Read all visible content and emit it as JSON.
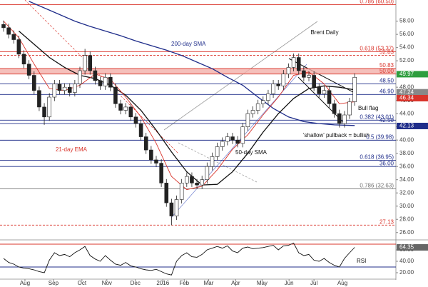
{
  "chart_data": {
    "type": "candlestick",
    "title": "Brent Daily",
    "ylim": [
      25,
      61.2
    ],
    "yticks": [
      {
        "value": 26,
        "label": "26.00"
      },
      {
        "value": 28,
        "label": "28.00"
      },
      {
        "value": 30,
        "label": "30.00"
      },
      {
        "value": 32,
        "label": "32.00"
      },
      {
        "value": 34,
        "label": "34.00"
      },
      {
        "value": 36,
        "label": "36.00"
      },
      {
        "value": 38,
        "label": "38.00"
      },
      {
        "value": 40,
        "label": "40.00"
      },
      {
        "value": 42,
        "label": "42.00"
      },
      {
        "value": 44,
        "label": "44.00"
      },
      {
        "value": 46,
        "label": "46.00"
      },
      {
        "value": 48,
        "label": "48.00"
      },
      {
        "value": 50,
        "label": "50.00"
      },
      {
        "value": 52,
        "label": "52.00"
      },
      {
        "value": 54,
        "label": "54.00"
      },
      {
        "value": 56,
        "label": "56.00"
      },
      {
        "value": 58,
        "label": "58.00"
      }
    ],
    "xlim": [
      -0.7,
      77.1
    ],
    "xticks": [
      {
        "value": 4.2,
        "label": "Aug"
      },
      {
        "value": 9.8,
        "label": "Sep"
      },
      {
        "value": 15.4,
        "label": "Oct"
      },
      {
        "value": 20.3,
        "label": "Nov"
      },
      {
        "value": 25.9,
        "label": "Dec"
      },
      {
        "value": 31.3,
        "label": "2016"
      },
      {
        "value": 35.5,
        "label": "Feb"
      },
      {
        "value": 40.3,
        "label": "Mar"
      },
      {
        "value": 45.6,
        "label": "Apr"
      },
      {
        "value": 50.8,
        "label": "May"
      },
      {
        "value": 56.1,
        "label": "Jun"
      },
      {
        "value": 61,
        "label": "Jul"
      },
      {
        "value": 66.6,
        "label": "Aug"
      }
    ],
    "grid": false,
    "candles": {
      "up_color": "#ffffff",
      "down_color": "#222222",
      "open": [
        57.5,
        57.0,
        56.0,
        55.2,
        53.0,
        51.5,
        49.8,
        47.5,
        45.0,
        43.5,
        46.5,
        48.5,
        47.5,
        48.0,
        47.2,
        48.5,
        50.5,
        52.8,
        50.5,
        49.0,
        48.2,
        49.5,
        48.0,
        45.5,
        44.5,
        45.0,
        43.5,
        42.5,
        40.5,
        38.5,
        37.0,
        36.5,
        33.5,
        30.5,
        28.5,
        31.0,
        33.5,
        34.5,
        33.5,
        33.2,
        34.0,
        36.0,
        37.5,
        39.0,
        39.8,
        40.5,
        40.0,
        39.5,
        42.0,
        44.0,
        44.5,
        45.5,
        46.0,
        47.0,
        48.5,
        48.2,
        50.0,
        51.0,
        52.5,
        50.5,
        49.5,
        49.8,
        48.0,
        47.0,
        47.5,
        45.5,
        44.0,
        42.5,
        43.8,
        45.8
      ],
      "high": [
        58.1,
        57.6,
        56.6,
        55.8,
        53.6,
        52.1,
        50.4,
        48.1,
        45.6,
        47.1,
        49.1,
        49.1,
        48.6,
        48.6,
        49.1,
        51.1,
        53.8,
        53.4,
        51.1,
        49.6,
        50.1,
        50.1,
        48.6,
        46.1,
        45.6,
        45.6,
        44.1,
        43.1,
        41.1,
        39.1,
        37.6,
        37.1,
        34.1,
        31.1,
        31.6,
        34.1,
        35.1,
        35.1,
        34.1,
        34.6,
        36.6,
        38.1,
        39.6,
        40.4,
        41.1,
        41.1,
        40.6,
        42.6,
        44.6,
        45.1,
        46.1,
        46.6,
        47.6,
        49.1,
        49.1,
        50.6,
        51.6,
        53.1,
        53.1,
        51.1,
        50.4,
        50.4,
        48.6,
        48.1,
        48.1,
        46.1,
        44.6,
        44.4,
        46.4,
        50.1
      ],
      "low": [
        56.4,
        55.4,
        54.6,
        52.4,
        50.9,
        49.2,
        46.9,
        44.4,
        42.3,
        42.9,
        45.9,
        46.9,
        46.9,
        46.6,
        46.6,
        47.9,
        49.9,
        49.9,
        48.4,
        47.6,
        47.6,
        47.4,
        44.9,
        43.9,
        43.9,
        42.9,
        41.9,
        39.9,
        37.9,
        36.4,
        35.9,
        32.9,
        29.9,
        27.13,
        27.9,
        30.4,
        32.9,
        32.9,
        32.6,
        32.6,
        33.4,
        35.4,
        36.9,
        38.4,
        39.2,
        39.4,
        38.9,
        38.9,
        41.4,
        43.4,
        43.9,
        44.9,
        45.4,
        46.4,
        47.6,
        47.6,
        49.4,
        50.4,
        49.9,
        48.9,
        48.9,
        47.4,
        46.4,
        46.4,
        44.9,
        43.4,
        41.9,
        41.9,
        43.2,
        45.2
      ],
      "close": [
        57.0,
        56.0,
        55.2,
        53.0,
        51.5,
        49.8,
        47.5,
        45.0,
        43.5,
        46.5,
        48.5,
        47.5,
        48.0,
        47.2,
        48.5,
        50.5,
        52.8,
        50.5,
        49.0,
        48.2,
        49.5,
        48.0,
        45.5,
        44.5,
        45.0,
        43.5,
        42.5,
        40.5,
        38.5,
        37.0,
        36.5,
        33.5,
        30.5,
        28.5,
        31.0,
        33.5,
        34.5,
        33.5,
        33.2,
        34.0,
        36.0,
        37.5,
        39.0,
        39.8,
        40.5,
        40.0,
        39.5,
        42.0,
        44.0,
        44.5,
        45.5,
        46.0,
        47.0,
        48.5,
        48.2,
        50.0,
        51.0,
        52.5,
        50.5,
        49.5,
        49.8,
        48.0,
        47.0,
        47.5,
        45.5,
        44.0,
        42.5,
        43.8,
        45.8,
        49.5
      ]
    },
    "series": [
      {
        "name": "200-day SMA",
        "color": "#1f2d8a",
        "x": [
          5,
          8,
          11,
          14,
          17,
          20,
          23,
          26,
          29,
          32,
          35,
          38,
          41,
          44,
          47,
          50,
          53,
          56,
          59,
          62,
          65,
          69
        ],
        "values": [
          61.0,
          60.0,
          59.0,
          58.0,
          57.2,
          56.5,
          55.8,
          55.0,
          54.3,
          53.6,
          52.8,
          51.8,
          50.8,
          49.5,
          48.3,
          46.5,
          44.8,
          43.5,
          42.8,
          42.5,
          42.3,
          42.2
        ]
      },
      {
        "name": "50-day SMA",
        "color": "#111111",
        "x": [
          3,
          6,
          9,
          12,
          15,
          18,
          21,
          24,
          27,
          30,
          33,
          36,
          39,
          42,
          45,
          48,
          51,
          54,
          57,
          60,
          63,
          66,
          69
        ],
        "values": [
          56.5,
          54.5,
          52.5,
          51.0,
          49.8,
          49.3,
          48.3,
          46.8,
          44.5,
          41.5,
          38.2,
          35.2,
          33.2,
          33.3,
          35.2,
          38.0,
          41.2,
          44.0,
          46.3,
          47.8,
          48.2,
          48.0,
          47.6
        ]
      },
      {
        "name": "21-day EMA",
        "color": "#d9342b",
        "x": [
          0,
          3,
          6,
          9,
          12,
          15,
          18,
          21,
          24,
          27,
          30,
          33,
          36,
          39,
          42,
          45,
          48,
          51,
          54,
          57,
          60,
          63,
          66,
          69
        ],
        "values": [
          58.0,
          55.5,
          51.5,
          47.8,
          47.5,
          48.3,
          50.0,
          49.2,
          46.5,
          43.5,
          39.5,
          34.5,
          32.5,
          33.0,
          35.5,
          38.6,
          40.8,
          43.8,
          46.5,
          49.8,
          50.3,
          48.5,
          45.5,
          45.8
        ]
      }
    ],
    "levels": [
      {
        "value": 60.5,
        "label": "0.786 (60.50)",
        "color": "#d9342b"
      },
      {
        "value": 53.37,
        "label": "0.618 (53.37)",
        "color": "#d9342b"
      },
      {
        "value": 52.83,
        "label": "52.83",
        "color": "#d9342b",
        "dash": true
      },
      {
        "value": 50.83,
        "label": "50.83",
        "color": "#d9342b",
        "fill": "#f3b0aa"
      },
      {
        "value": 50.0,
        "label": "50.00",
        "color": "#d9342b"
      },
      {
        "value": 48.5,
        "label": "48.50",
        "color": "#1f2d8a"
      },
      {
        "value": 46.9,
        "label": "46.90",
        "color": "#1f2d8a"
      },
      {
        "value": 43.01,
        "label": "0.382 (43.01)",
        "color": "#1f2d8a"
      },
      {
        "value": 42.5,
        "label": "42.50",
        "color": "#1f2d8a"
      },
      {
        "value": 39.98,
        "label": "0.5 (39.98)",
        "color": "#1f2d8a"
      },
      {
        "value": 36.95,
        "label": "0.618 (36.95)",
        "color": "#1f2d8a"
      },
      {
        "value": 36.0,
        "label": "36.00",
        "color": "#1f2d8a"
      },
      {
        "value": 32.63,
        "label": "0.786 (32.63)",
        "color": "#777777"
      },
      {
        "value": 27.13,
        "label": "27.13",
        "color": "#d9342b",
        "dash": true
      }
    ],
    "price_tags": [
      {
        "value": 49.97,
        "label": "49.97",
        "color": "#2e9e3e"
      },
      {
        "value": 47.24,
        "label": "47.24",
        "color": "#888888"
      },
      {
        "value": 46.34,
        "label": "46.34",
        "color": "#d9342b"
      },
      {
        "value": 42.13,
        "label": "42.13",
        "color": "#1f2d8a"
      }
    ],
    "annotations": [
      {
        "text": "Bull flag",
        "color": "#111111"
      },
      {
        "text": "'shallow' pullback = bullish",
        "color": "#111111"
      }
    ],
    "rsi": {
      "title": "RSI",
      "color": "#111111",
      "ylim": [
        10,
        75
      ],
      "yticks": [
        {
          "value": 20,
          "label": "20.00"
        },
        {
          "value": 40,
          "label": "40.00"
        },
        {
          "value": 60,
          "label": "60.00"
        }
      ],
      "levels": [
        {
          "value": 70,
          "color": "#d9342b"
        },
        {
          "value": 30,
          "color": "#1f2d8a"
        }
      ],
      "values": [
        45,
        38,
        35,
        30,
        28,
        27,
        25,
        22,
        20,
        42,
        55,
        50,
        52,
        48,
        55,
        60,
        66,
        50,
        44,
        40,
        50,
        42,
        35,
        33,
        38,
        32,
        30,
        27,
        25,
        24,
        26,
        22,
        18,
        16,
        40,
        50,
        55,
        48,
        47,
        52,
        60,
        63,
        66,
        63,
        67,
        58,
        55,
        63,
        65,
        62,
        63,
        64,
        66,
        68,
        60,
        67,
        68,
        72,
        55,
        50,
        52,
        42,
        40,
        45,
        38,
        33,
        30,
        45,
        55,
        64.35
      ],
      "tag": {
        "value": 64.35,
        "label": "64.35",
        "color": "#666666"
      }
    }
  }
}
